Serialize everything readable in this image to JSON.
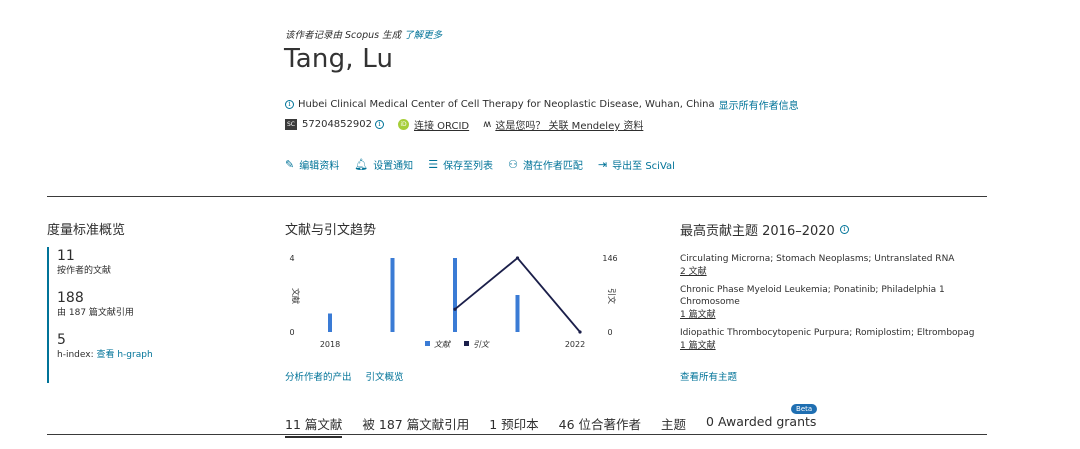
{
  "header": {
    "provenance_text": "该作者记录由 Scopus 生成",
    "provenance_link": "了解更多",
    "author_name": "Tang, Lu",
    "affiliation": "Hubei Clinical Medical Center of Cell Therapy for Neoplastic Disease, Wuhan, China",
    "affiliation_link": "显示所有作者信息",
    "scopus_id": "57204852902",
    "orcid_label": "连接 ORCID",
    "mendeley_label": "这是您吗？ 关联 Mendeley 资料"
  },
  "actions": [
    {
      "label": "编辑资料",
      "icon": "pencil-icon"
    },
    {
      "label": "设置通知",
      "icon": "bell-icon"
    },
    {
      "label": "保存至列表",
      "icon": "list-icon"
    },
    {
      "label": "潜在作者匹配",
      "icon": "users-icon"
    },
    {
      "label": "导出至 SciVal",
      "icon": "export-icon"
    }
  ],
  "metrics": {
    "title": "度量标准概览",
    "items": [
      {
        "value": "11",
        "label": "按作者的文献"
      },
      {
        "value": "188",
        "label": "由 187 篇文献引用"
      },
      {
        "value": "5",
        "label": "h-index:",
        "link": "查看 h-graph"
      }
    ]
  },
  "trend": {
    "title": "文献与引文趋势",
    "links": [
      "分析作者的产出",
      "引文概览"
    ]
  },
  "chart_data": {
    "type": "bar",
    "x": [
      2018,
      2019,
      2020,
      2021,
      2022
    ],
    "series": [
      {
        "name": "文献",
        "type": "bar",
        "axis": "left",
        "values": [
          1,
          4,
          4,
          2,
          0
        ],
        "color": "#3a7bd5"
      },
      {
        "name": "引文",
        "type": "line",
        "axis": "right",
        "values": [
          null,
          null,
          45,
          146,
          0
        ],
        "color": "#1b1f4a"
      }
    ],
    "x_tick_labels": [
      "2018",
      "2022"
    ],
    "ylabel_left": "文献",
    "ylabel_right": "引文",
    "y_left_ticks": [
      "0",
      "4"
    ],
    "y_right_ticks": [
      "0",
      "146"
    ],
    "ylim_left": [
      0,
      4
    ],
    "ylim_right": [
      0,
      146
    ],
    "legend_position": "bottom",
    "grid": false
  },
  "topics": {
    "title": "最高贡献主题 2016–2020",
    "items": [
      {
        "name": "Circulating Microrna; Stomach Neoplasms; Untranslated RNA",
        "count": "2 文献"
      },
      {
        "name": "Chronic Phase Myeloid Leukemia; Ponatinib; Philadelphia 1 Chromosome",
        "count": "1 篇文献"
      },
      {
        "name": "Idiopathic Thrombocytopenic Purpura; Romiplostim; Eltrombopag",
        "count": "1 篇文献"
      }
    ],
    "all_link": "查看所有主题"
  },
  "tabs": [
    {
      "label": "11 篇文献"
    },
    {
      "label": "被 187 篇文献引用"
    },
    {
      "label": "1 预印本"
    },
    {
      "label": "46 位合著作者"
    },
    {
      "label": "主题"
    },
    {
      "label": "0 Awarded grants",
      "badge": "Beta"
    }
  ]
}
